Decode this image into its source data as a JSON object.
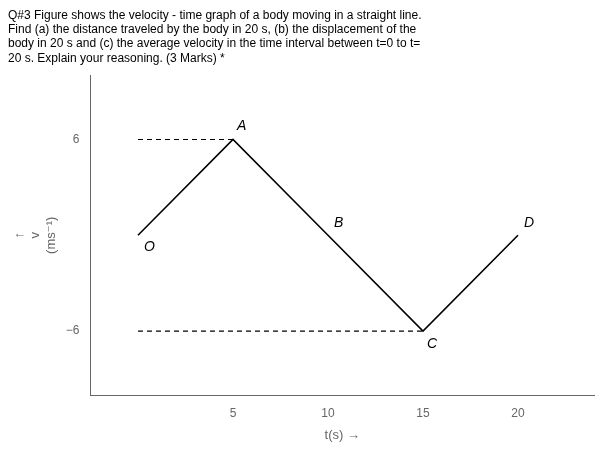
{
  "chart_data": {
    "type": "line",
    "title": [
      "Q#3 Figure shows the velocity - time graph of a body moving in a straight line.",
      "Find (a) the distance traveled by the body in 20 s, (b) the displacement of the",
      "body in 20 s and (c) the average velocity in the time interval between t=0 to t=",
      "20 s. Explain your reasoning. (3 Marks) *"
    ],
    "xlabel": "t(s) →",
    "ylabel": [
      "↑",
      "v",
      "(ms⁻¹)"
    ],
    "series": [
      {
        "x": [
          0,
          5,
          10,
          15,
          20
        ],
        "values": [
          0,
          6,
          0,
          -6,
          0
        ],
        "color": "#000000",
        "line_style": "solid"
      },
      {
        "x": [
          0,
          5
        ],
        "values": [
          6,
          6
        ],
        "color": "#000000",
        "line_style": "dashed"
      },
      {
        "x": [
          0,
          15
        ],
        "values": [
          -6,
          -6
        ],
        "color": "#000000",
        "line_style": "dashed"
      }
    ],
    "xlim": [
      -2.5,
      24
    ],
    "ylim": [
      -10,
      10
    ],
    "xticks": [
      5,
      10,
      15,
      20
    ],
    "yticks": [
      {
        "value": -6,
        "label": "−6"
      },
      6
    ],
    "grid": false,
    "annotations": [
      {
        "text": "O",
        "x": 0,
        "y": 0
      },
      {
        "text": "A",
        "x": 5,
        "y": 6
      },
      {
        "text": "B",
        "x": 10,
        "y": 0
      },
      {
        "text": "C",
        "x": 15,
        "y": -6
      },
      {
        "text": "D",
        "x": 20,
        "y": 0
      }
    ]
  }
}
